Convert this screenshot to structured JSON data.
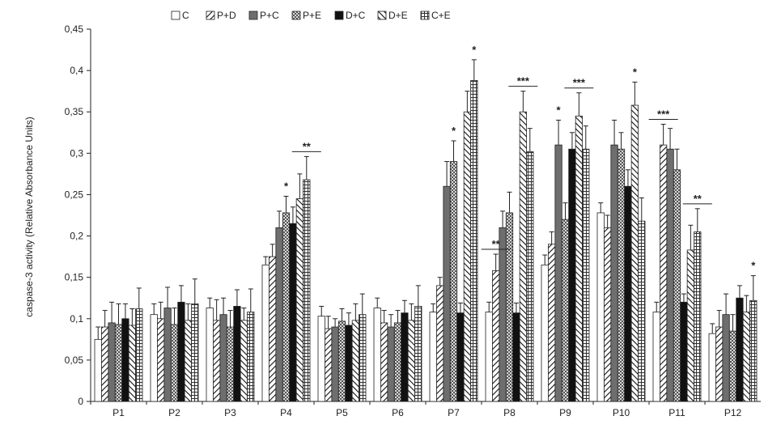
{
  "chart_data": {
    "type": "bar",
    "title": "",
    "xlabel": "",
    "ylabel": "caspase-3 activity (Relative Absorbance Units)",
    "ylim": [
      0,
      0.45
    ],
    "yticks": [
      "0",
      "0,05",
      "0,1",
      "0,15",
      "0,2",
      "0,25",
      "0,3",
      "0,35",
      "0,4",
      "0,45"
    ],
    "grid": false,
    "legend_position": "top",
    "categories": [
      "P1",
      "P2",
      "P3",
      "P4",
      "P5",
      "P6",
      "P7",
      "P8",
      "P9",
      "P10",
      "P11",
      "P12"
    ],
    "series": [
      {
        "name": "C",
        "pattern": "white",
        "values": [
          0.075,
          0.105,
          0.113,
          0.165,
          0.103,
          0.113,
          0.108,
          0.108,
          0.165,
          0.228,
          0.108,
          0.082
        ],
        "errors": [
          0.015,
          0.013,
          0.012,
          0.01,
          0.012,
          0.012,
          0.01,
          0.012,
          0.012,
          0.012,
          0.012,
          0.012
        ]
      },
      {
        "name": "P+D",
        "pattern": "hatch",
        "values": [
          0.09,
          0.1,
          0.098,
          0.175,
          0.088,
          0.095,
          0.14,
          0.158,
          0.19,
          0.21,
          0.31,
          0.09
        ],
        "errors": [
          0.02,
          0.02,
          0.025,
          0.015,
          0.015,
          0.015,
          0.01,
          0.02,
          0.015,
          0.015,
          0.025,
          0.02
        ]
      },
      {
        "name": "P+C",
        "pattern": "gray",
        "values": [
          0.095,
          0.113,
          0.105,
          0.21,
          0.09,
          0.09,
          0.26,
          0.21,
          0.31,
          0.31,
          0.305,
          0.105
        ],
        "errors": [
          0.025,
          0.025,
          0.02,
          0.02,
          0.01,
          0.015,
          0.03,
          0.02,
          0.03,
          0.03,
          0.025,
          0.025
        ]
      },
      {
        "name": "P+E",
        "pattern": "check",
        "values": [
          0.093,
          0.093,
          0.09,
          0.228,
          0.097,
          0.095,
          0.29,
          0.228,
          0.22,
          0.305,
          0.28,
          0.085
        ],
        "errors": [
          0.025,
          0.02,
          0.02,
          0.02,
          0.015,
          0.015,
          0.025,
          0.025,
          0.02,
          0.02,
          0.025,
          0.02
        ]
      },
      {
        "name": "D+C",
        "pattern": "black",
        "values": [
          0.1,
          0.12,
          0.115,
          0.215,
          0.092,
          0.107,
          0.107,
          0.107,
          0.305,
          0.26,
          0.12,
          0.125
        ],
        "errors": [
          0.018,
          0.02,
          0.02,
          0.02,
          0.015,
          0.015,
          0.012,
          0.012,
          0.02,
          0.02,
          0.01,
          0.015
        ]
      },
      {
        "name": "D+E",
        "pattern": "hatch2",
        "values": [
          0.092,
          0.098,
          0.098,
          0.245,
          0.098,
          0.098,
          0.35,
          0.35,
          0.345,
          0.358,
          0.183,
          0.108
        ],
        "errors": [
          0.02,
          0.02,
          0.015,
          0.03,
          0.02,
          0.02,
          0.025,
          0.025,
          0.028,
          0.028,
          0.03,
          0.02
        ]
      },
      {
        "name": "C+E",
        "pattern": "grid",
        "values": [
          0.112,
          0.118,
          0.108,
          0.268,
          0.105,
          0.115,
          0.388,
          0.302,
          0.305,
          0.218,
          0.205,
          0.122
        ],
        "errors": [
          0.025,
          0.03,
          0.028,
          0.028,
          0.025,
          0.025,
          0.025,
          0.028,
          0.028,
          0.028,
          0.028,
          0.03
        ]
      }
    ],
    "significance": [
      {
        "label": "*",
        "category": "P4",
        "series": "P+E"
      },
      {
        "label": "**",
        "category": "P4",
        "series": "C+E"
      },
      {
        "label": "*",
        "category": "P7",
        "series": "P+E"
      },
      {
        "label": "*",
        "category": "P7",
        "series": "C+E"
      },
      {
        "label": "**",
        "category": "P8",
        "series": "P+D"
      },
      {
        "label": "***",
        "category": "P8",
        "series": "D+E"
      },
      {
        "label": "*",
        "category": "P9",
        "series": "P+C"
      },
      {
        "label": "***",
        "category": "P9",
        "series": "D+E"
      },
      {
        "label": "*",
        "category": "P10",
        "series": "D+E"
      },
      {
        "label": "***",
        "category": "P11",
        "series": "P+D"
      },
      {
        "label": "**",
        "category": "P11",
        "series": "C+E"
      },
      {
        "label": "*",
        "category": "P12",
        "series": "C+E"
      }
    ]
  }
}
